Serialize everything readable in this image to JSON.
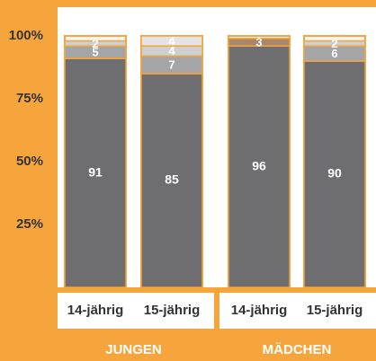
{
  "chart_data": {
    "type": "stacked_bar",
    "categories": [
      "14-jährig",
      "15-jährig",
      "14-jährig",
      "15-jährig"
    ],
    "group_labels": [
      "JUNGEN",
      "MÄDCHEN"
    ],
    "series": [
      {
        "color": "#6e6e70",
        "values": [
          91,
          85,
          96,
          90
        ]
      },
      {
        "color": "#a5a5a7",
        "values": [
          5,
          7,
          null,
          6
        ]
      },
      {
        "color": "#a8876a",
        "values": [
          null,
          null,
          3,
          null
        ]
      },
      {
        "color": "#cfcfd0",
        "values": [
          2,
          4,
          null,
          2
        ]
      },
      {
        "color": "#e4e4e4",
        "values": [
          null,
          4,
          null,
          null
        ]
      }
    ],
    "ylim": [
      0,
      100
    ],
    "yticks": [
      {
        "value": 25,
        "label": "25%"
      },
      {
        "value": 50,
        "label": "50%"
      },
      {
        "value": 75,
        "label": "75%"
      },
      {
        "value": 100,
        "label": "100%"
      }
    ]
  }
}
